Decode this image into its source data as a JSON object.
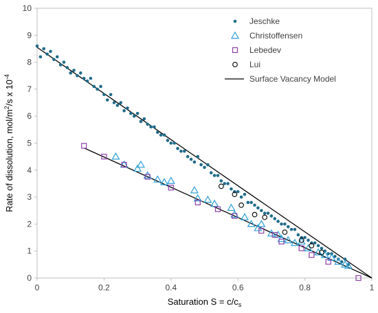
{
  "chart_data": {
    "type": "scatter",
    "xlabel": "Saturation S = c/c",
    "xlabel_sub": "s",
    "ylabel": "Rate of dissolution, mol/m",
    "ylabel_sup": "2",
    "ylabel_mid": "/s x 10",
    "ylabel_sup2": "-4",
    "xlim": [
      0,
      1
    ],
    "ylim": [
      0,
      10
    ],
    "x_ticks": [
      0,
      0.2,
      0.4,
      0.6,
      0.8,
      1
    ],
    "x_tick_labels": [
      "0",
      "0.2",
      "0.4",
      "0.6",
      "0.8",
      "1"
    ],
    "y_ticks": [
      0,
      1,
      2,
      3,
      4,
      5,
      6,
      7,
      8,
      9,
      10
    ],
    "y_tick_labels": [
      "0",
      "1",
      "2",
      "3",
      "4",
      "5",
      "6",
      "7",
      "8",
      "9",
      "10"
    ],
    "grid": false,
    "legend_position": "top-right",
    "series": [
      {
        "name": "Jeschke",
        "marker": "dot",
        "color": "#1f6b8a",
        "points": [
          [
            0.0,
            8.6
          ],
          [
            0.01,
            8.2
          ],
          [
            0.02,
            8.5
          ],
          [
            0.03,
            8.3
          ],
          [
            0.04,
            8.4
          ],
          [
            0.05,
            8.1
          ],
          [
            0.06,
            8.2
          ],
          [
            0.07,
            7.9
          ],
          [
            0.08,
            8.0
          ],
          [
            0.09,
            7.8
          ],
          [
            0.1,
            7.6
          ],
          [
            0.11,
            7.7
          ],
          [
            0.12,
            7.5
          ],
          [
            0.13,
            7.6
          ],
          [
            0.14,
            7.4
          ],
          [
            0.15,
            7.3
          ],
          [
            0.16,
            7.4
          ],
          [
            0.17,
            7.1
          ],
          [
            0.18,
            7.0
          ],
          [
            0.19,
            7.1
          ],
          [
            0.2,
            6.8
          ],
          [
            0.21,
            6.6
          ],
          [
            0.22,
            6.8
          ],
          [
            0.23,
            6.5
          ],
          [
            0.24,
            6.4
          ],
          [
            0.25,
            6.5
          ],
          [
            0.26,
            6.2
          ],
          [
            0.27,
            6.3
          ],
          [
            0.28,
            6.1
          ],
          [
            0.29,
            6.0
          ],
          [
            0.3,
            6.1
          ],
          [
            0.31,
            5.8
          ],
          [
            0.32,
            5.9
          ],
          [
            0.33,
            5.7
          ],
          [
            0.34,
            5.6
          ],
          [
            0.35,
            5.6
          ],
          [
            0.36,
            5.4
          ],
          [
            0.37,
            5.3
          ],
          [
            0.38,
            5.3
          ],
          [
            0.39,
            5.1
          ],
          [
            0.4,
            5.0
          ],
          [
            0.41,
            5.0
          ],
          [
            0.42,
            4.8
          ],
          [
            0.43,
            4.7
          ],
          [
            0.44,
            4.7
          ],
          [
            0.45,
            4.5
          ],
          [
            0.46,
            4.4
          ],
          [
            0.47,
            4.3
          ],
          [
            0.48,
            4.5
          ],
          [
            0.49,
            4.2
          ],
          [
            0.5,
            4.1
          ],
          [
            0.51,
            4.2
          ],
          [
            0.52,
            3.9
          ],
          [
            0.53,
            3.8
          ],
          [
            0.54,
            3.8
          ],
          [
            0.55,
            3.6
          ],
          [
            0.56,
            3.5
          ],
          [
            0.57,
            3.5
          ],
          [
            0.58,
            3.3
          ],
          [
            0.59,
            3.2
          ],
          [
            0.6,
            3.2
          ],
          [
            0.61,
            3.0
          ],
          [
            0.62,
            3.1
          ],
          [
            0.63,
            2.8
          ],
          [
            0.64,
            2.8
          ],
          [
            0.65,
            2.7
          ],
          [
            0.66,
            2.6
          ],
          [
            0.67,
            2.5
          ],
          [
            0.68,
            2.4
          ],
          [
            0.69,
            2.4
          ],
          [
            0.7,
            2.3
          ],
          [
            0.71,
            2.2
          ],
          [
            0.72,
            2.1
          ],
          [
            0.73,
            2.0
          ],
          [
            0.74,
            2.0
          ],
          [
            0.75,
            1.9
          ],
          [
            0.76,
            1.8
          ],
          [
            0.77,
            1.8
          ],
          [
            0.78,
            1.6
          ],
          [
            0.79,
            1.5
          ],
          [
            0.8,
            1.5
          ],
          [
            0.81,
            1.4
          ],
          [
            0.82,
            1.3
          ],
          [
            0.83,
            1.3
          ],
          [
            0.84,
            1.2
          ],
          [
            0.85,
            1.1
          ],
          [
            0.86,
            1.0
          ],
          [
            0.87,
            0.9
          ],
          [
            0.88,
            0.9
          ],
          [
            0.89,
            0.8
          ],
          [
            0.9,
            0.7
          ],
          [
            0.91,
            0.6
          ],
          [
            0.92,
            0.7
          ],
          [
            0.93,
            0.5
          ]
        ]
      },
      {
        "name": "Christoffensen",
        "marker": "triangle",
        "color": "#2e9fd6",
        "points": [
          [
            0.235,
            4.5
          ],
          [
            0.26,
            4.2
          ],
          [
            0.3,
            4.05
          ],
          [
            0.31,
            4.2
          ],
          [
            0.33,
            3.8
          ],
          [
            0.36,
            3.65
          ],
          [
            0.38,
            3.55
          ],
          [
            0.4,
            3.6
          ],
          [
            0.47,
            3.25
          ],
          [
            0.48,
            2.95
          ],
          [
            0.51,
            2.9
          ],
          [
            0.53,
            2.75
          ],
          [
            0.58,
            2.6
          ],
          [
            0.59,
            2.35
          ],
          [
            0.62,
            2.25
          ],
          [
            0.64,
            2.0
          ],
          [
            0.66,
            1.85
          ],
          [
            0.67,
            2.0
          ],
          [
            0.7,
            1.65
          ],
          [
            0.72,
            1.6
          ],
          [
            0.73,
            1.45
          ],
          [
            0.75,
            1.4
          ],
          [
            0.77,
            1.3
          ],
          [
            0.79,
            1.35
          ],
          [
            0.81,
            1.1
          ],
          [
            0.84,
            0.95
          ],
          [
            0.86,
            0.85
          ],
          [
            0.88,
            0.75
          ],
          [
            0.9,
            0.6
          ],
          [
            0.92,
            0.5
          ],
          [
            0.93,
            0.45
          ]
        ]
      },
      {
        "name": "Lebedev",
        "marker": "square",
        "color": "#8b3fa8",
        "points": [
          [
            0.14,
            4.9
          ],
          [
            0.2,
            4.5
          ],
          [
            0.26,
            4.2
          ],
          [
            0.33,
            3.75
          ],
          [
            0.4,
            3.35
          ],
          [
            0.48,
            2.8
          ],
          [
            0.54,
            2.55
          ],
          [
            0.59,
            2.3
          ],
          [
            0.67,
            1.75
          ],
          [
            0.71,
            1.6
          ],
          [
            0.73,
            1.35
          ],
          [
            0.79,
            1.1
          ],
          [
            0.82,
            0.85
          ],
          [
            0.87,
            0.6
          ],
          [
            0.96,
            0.0
          ]
        ]
      },
      {
        "name": "Lui",
        "marker": "circle",
        "color": "#000000",
        "points": [
          [
            0.55,
            3.4
          ],
          [
            0.59,
            3.1
          ],
          [
            0.61,
            2.7
          ],
          [
            0.65,
            2.35
          ],
          [
            0.68,
            2.25
          ],
          [
            0.74,
            1.7
          ],
          [
            0.79,
            1.4
          ],
          [
            0.82,
            1.2
          ],
          [
            0.85,
            0.95
          ]
        ]
      },
      {
        "name": "Surface Vacancy Model",
        "marker": "line",
        "color": "#000000",
        "lines": [
          [
            [
              0.0,
              8.55
            ],
            [
              1.0,
              0.0
            ]
          ],
          [
            [
              0.14,
              4.82
            ],
            [
              1.0,
              0.0
            ]
          ]
        ]
      }
    ]
  }
}
